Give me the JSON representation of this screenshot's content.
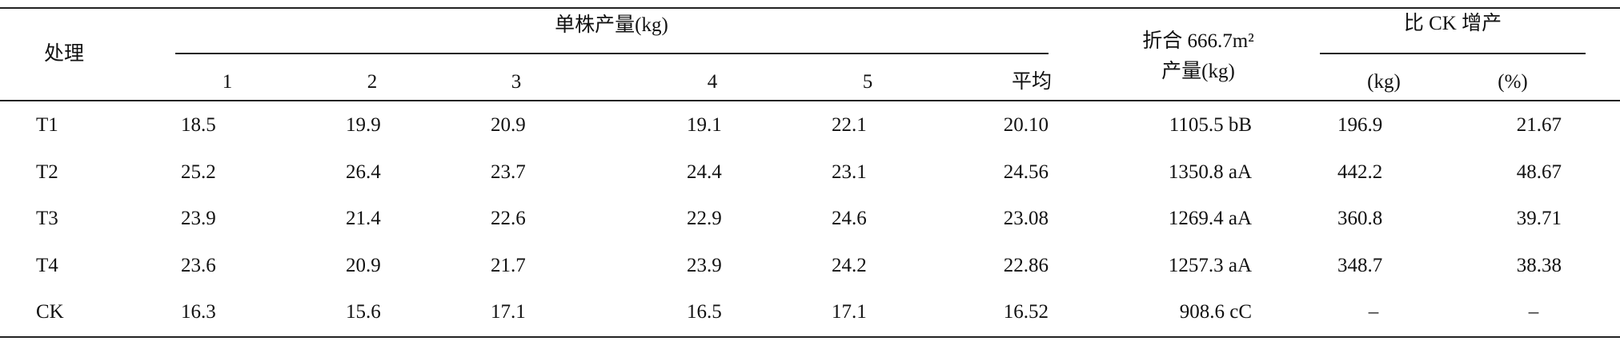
{
  "table": {
    "header": {
      "treatment": "处理",
      "group1": "单株产量(kg)",
      "columns": [
        "1",
        "2",
        "3",
        "4",
        "5",
        "平均"
      ],
      "yield": [
        "折合 666.7m²",
        "产量(kg)"
      ],
      "group2": "比 CK 增产",
      "increase_columns": [
        "(kg)",
        "(%)"
      ]
    },
    "rows": [
      [
        "T1",
        "18.5",
        "19.9",
        "20.9",
        "19.1",
        "22.1",
        "20.10",
        "1105.5 bB",
        "196.9",
        "21.67"
      ],
      [
        "T2",
        "25.2",
        "26.4",
        "23.7",
        "24.4",
        "23.1",
        "24.56",
        "1350.8 aA",
        "442.2",
        "48.67"
      ],
      [
        "T3",
        "23.9",
        "21.4",
        "22.6",
        "22.9",
        "24.6",
        "23.08",
        "1269.4 aA",
        "360.8",
        "39.71"
      ],
      [
        "T4",
        "23.6",
        "20.9",
        "21.7",
        "23.9",
        "24.2",
        "22.86",
        "1257.3 aA",
        "348.7",
        "38.38"
      ],
      [
        "CK",
        "16.3",
        "15.6",
        "17.1",
        "16.5",
        "17.1",
        "16.52",
        "908.6 cC",
        "–",
        "–"
      ]
    ]
  }
}
